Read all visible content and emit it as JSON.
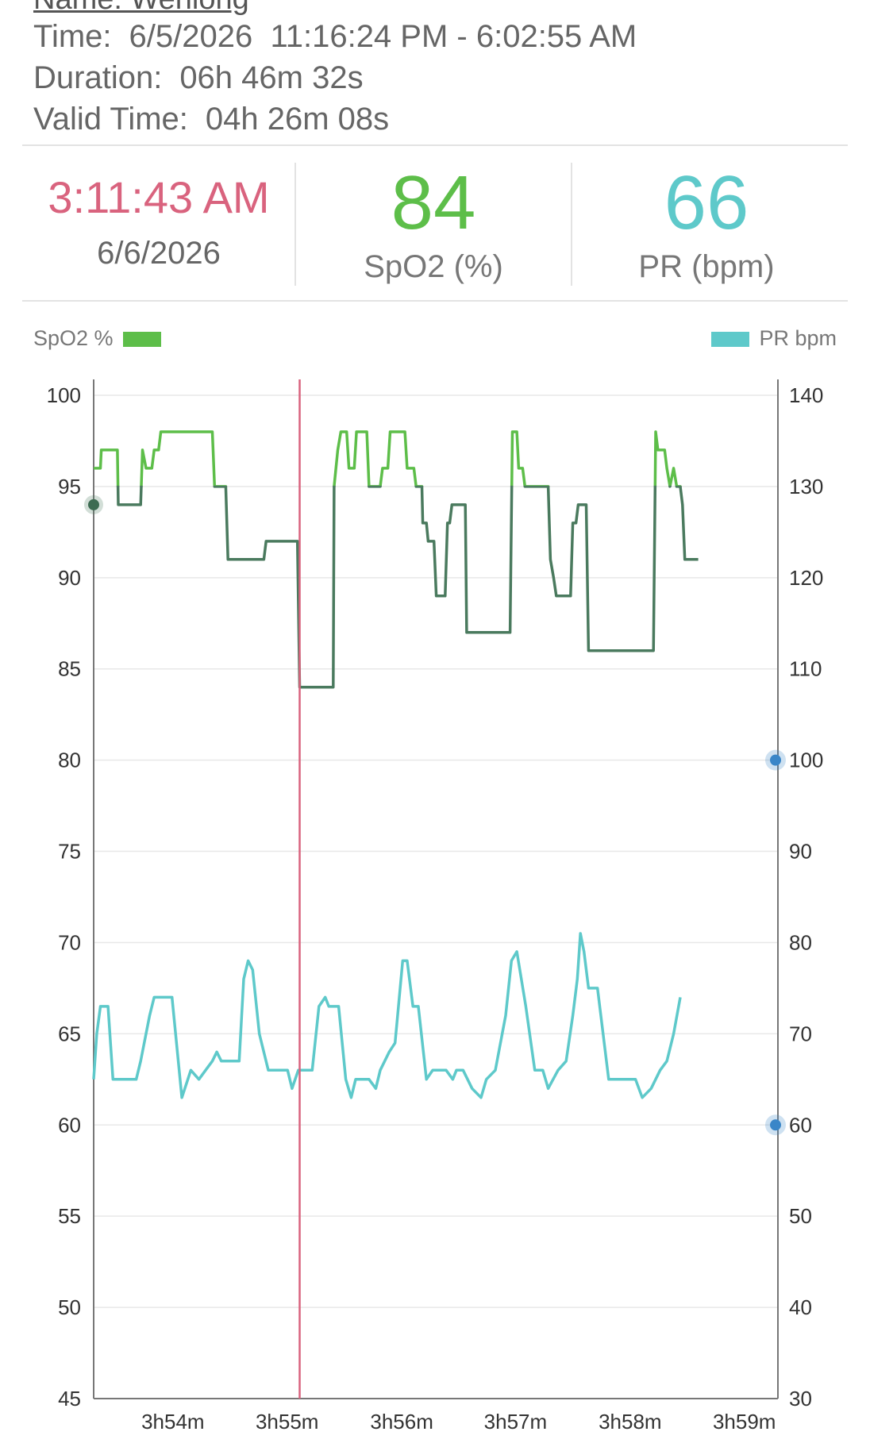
{
  "header": {
    "name_line": "Name: Wenlong",
    "time_label": "Time:",
    "time_value": "6/5/2026  11:16:24 PM - 6:02:55 AM",
    "duration_label": "Duration:",
    "duration_value": "06h 46m 32s",
    "valid_label": "Valid Time:",
    "valid_value": "04h 26m 08s"
  },
  "cursor": {
    "time": "3:11:43 AM",
    "date": "6/6/2026"
  },
  "readings": {
    "spo2_value": "84",
    "spo2_label": "SpO2 (%)",
    "pr_value": "66",
    "pr_label": "PR (bpm)"
  },
  "legend": {
    "spo2": "SpO2 %",
    "pr": "PR bpm"
  },
  "colors": {
    "spo2": "#5dbe49",
    "spo2_low": "#4a7a5e",
    "pr": "#5ec9ca",
    "cursor": "#d9637e",
    "marker": "#3a86c8"
  },
  "chart_data": {
    "type": "line",
    "x_ticks": [
      "3h54m",
      "3h55m",
      "3h56m",
      "3h57m",
      "3h58m",
      "3h59m"
    ],
    "x_tick_minutes": [
      3.8912,
      3.9167,
      3.9423,
      3.9677,
      3.9933,
      4.0188
    ],
    "xlim_minutes": [
      3.8735,
      4.0263
    ],
    "y_left": {
      "label": "SpO2 %",
      "range": [
        45,
        100
      ],
      "ticks": [
        100,
        95,
        90,
        85,
        80,
        75,
        70,
        65,
        60,
        55,
        50,
        45
      ]
    },
    "y_right": {
      "label": "PR bpm",
      "range": [
        30,
        140
      ],
      "ticks": [
        140,
        130,
        120,
        110,
        100,
        90,
        80,
        70,
        60,
        50,
        40,
        30
      ]
    },
    "cursor_x_minutes": 3.9195,
    "spo2_threshold": 95,
    "pr_markers": [
      100,
      60
    ],
    "spo2_start_marker": 94,
    "series": [
      {
        "name": "SpO2 %",
        "axis": "left",
        "points": [
          [
            3.8735,
            96
          ],
          [
            3.875,
            96
          ],
          [
            3.8752,
            97
          ],
          [
            3.8788,
            97
          ],
          [
            3.879,
            94
          ],
          [
            3.884,
            94
          ],
          [
            3.8844,
            97
          ],
          [
            3.8852,
            96
          ],
          [
            3.8865,
            96
          ],
          [
            3.887,
            97
          ],
          [
            3.888,
            97
          ],
          [
            3.8885,
            98
          ],
          [
            3.9,
            98
          ],
          [
            3.9005,
            95
          ],
          [
            3.903,
            95
          ],
          [
            3.9035,
            91
          ],
          [
            3.9115,
            91
          ],
          [
            3.912,
            92
          ],
          [
            3.919,
            92
          ],
          [
            3.9195,
            84
          ],
          [
            3.927,
            84
          ],
          [
            3.9272,
            95
          ],
          [
            3.928,
            97
          ],
          [
            3.9287,
            98
          ],
          [
            3.93,
            98
          ],
          [
            3.9305,
            96
          ],
          [
            3.9317,
            96
          ],
          [
            3.9322,
            98
          ],
          [
            3.933,
            98
          ],
          [
            3.9345,
            98
          ],
          [
            3.935,
            95
          ],
          [
            3.9375,
            95
          ],
          [
            3.938,
            96
          ],
          [
            3.9392,
            96
          ],
          [
            3.9397,
            98
          ],
          [
            3.943,
            98
          ],
          [
            3.9435,
            96
          ],
          [
            3.945,
            96
          ],
          [
            3.9455,
            95
          ],
          [
            3.9468,
            95
          ],
          [
            3.947,
            93
          ],
          [
            3.9478,
            93
          ],
          [
            3.9482,
            92
          ],
          [
            3.9495,
            92
          ],
          [
            3.95,
            89
          ],
          [
            3.952,
            89
          ],
          [
            3.9525,
            93
          ],
          [
            3.953,
            93
          ],
          [
            3.9535,
            94
          ],
          [
            3.9565,
            94
          ],
          [
            3.9568,
            87
          ],
          [
            3.9665,
            87
          ],
          [
            3.967,
            98
          ],
          [
            3.968,
            98
          ],
          [
            3.9684,
            96
          ],
          [
            3.9693,
            96
          ],
          [
            3.9698,
            95
          ],
          [
            3.975,
            95
          ],
          [
            3.9755,
            91
          ],
          [
            3.9762,
            90
          ],
          [
            3.9768,
            89
          ],
          [
            3.98,
            89
          ],
          [
            3.9805,
            93
          ],
          [
            3.9812,
            93
          ],
          [
            3.9817,
            94
          ],
          [
            3.9835,
            94
          ],
          [
            3.984,
            86
          ],
          [
            3.9985,
            86
          ],
          [
            3.999,
            98
          ],
          [
            3.9995,
            97
          ],
          [
            4.001,
            97
          ],
          [
            4.0015,
            96
          ],
          [
            4.0022,
            95
          ],
          [
            4.003,
            96
          ],
          [
            4.0037,
            95
          ],
          [
            4.0045,
            95
          ],
          [
            4.005,
            94
          ],
          [
            4.0055,
            91
          ],
          [
            4.0085,
            91
          ]
        ]
      },
      {
        "name": "PR bpm",
        "axis": "right",
        "points": [
          [
            3.8735,
            65
          ],
          [
            3.8742,
            70
          ],
          [
            3.875,
            73
          ],
          [
            3.8767,
            73
          ],
          [
            3.8778,
            65
          ],
          [
            3.883,
            65
          ],
          [
            3.884,
            67
          ],
          [
            3.886,
            72
          ],
          [
            3.887,
            74
          ],
          [
            3.891,
            74
          ],
          [
            3.8932,
            63
          ],
          [
            3.8952,
            66
          ],
          [
            3.897,
            65
          ],
          [
            3.8985,
            66
          ],
          [
            3.9,
            67
          ],
          [
            3.901,
            68
          ],
          [
            3.902,
            67
          ],
          [
            3.906,
            67
          ],
          [
            3.907,
            76
          ],
          [
            3.908,
            78
          ],
          [
            3.909,
            77
          ],
          [
            3.9105,
            70
          ],
          [
            3.9125,
            66
          ],
          [
            3.914,
            66
          ],
          [
            3.9168,
            66
          ],
          [
            3.9178,
            64
          ],
          [
            3.9192,
            66
          ],
          [
            3.9223,
            66
          ],
          [
            3.9238,
            73
          ],
          [
            3.9252,
            74
          ],
          [
            3.926,
            73
          ],
          [
            3.9282,
            73
          ],
          [
            3.9298,
            65
          ],
          [
            3.931,
            63
          ],
          [
            3.932,
            65
          ],
          [
            3.935,
            65
          ],
          [
            3.9365,
            64
          ],
          [
            3.9375,
            66
          ],
          [
            3.9395,
            68
          ],
          [
            3.9408,
            69
          ],
          [
            3.9425,
            78
          ],
          [
            3.9435,
            78
          ],
          [
            3.9448,
            73
          ],
          [
            3.946,
            73
          ],
          [
            3.9478,
            65
          ],
          [
            3.9492,
            66
          ],
          [
            3.9522,
            66
          ],
          [
            3.9537,
            65
          ],
          [
            3.9545,
            66
          ],
          [
            3.956,
            66
          ],
          [
            3.958,
            64
          ],
          [
            3.96,
            63
          ],
          [
            3.9612,
            65
          ],
          [
            3.9632,
            66
          ],
          [
            3.9655,
            72
          ],
          [
            3.9668,
            78
          ],
          [
            3.968,
            79
          ],
          [
            3.97,
            73
          ],
          [
            3.972,
            66
          ],
          [
            3.9738,
            66
          ],
          [
            3.975,
            64
          ],
          [
            3.9772,
            66
          ],
          [
            3.979,
            67
          ],
          [
            3.9805,
            72
          ],
          [
            3.9815,
            76
          ],
          [
            3.9822,
            81
          ],
          [
            3.983,
            79
          ],
          [
            3.984,
            75
          ],
          [
            3.986,
            75
          ],
          [
            3.9885,
            65
          ],
          [
            3.9945,
            65
          ],
          [
            3.996,
            63
          ],
          [
            3.998,
            64
          ],
          [
            4.0,
            66
          ],
          [
            4.0015,
            67
          ],
          [
            4.003,
            70
          ],
          [
            4.0045,
            74
          ]
        ]
      }
    ]
  }
}
